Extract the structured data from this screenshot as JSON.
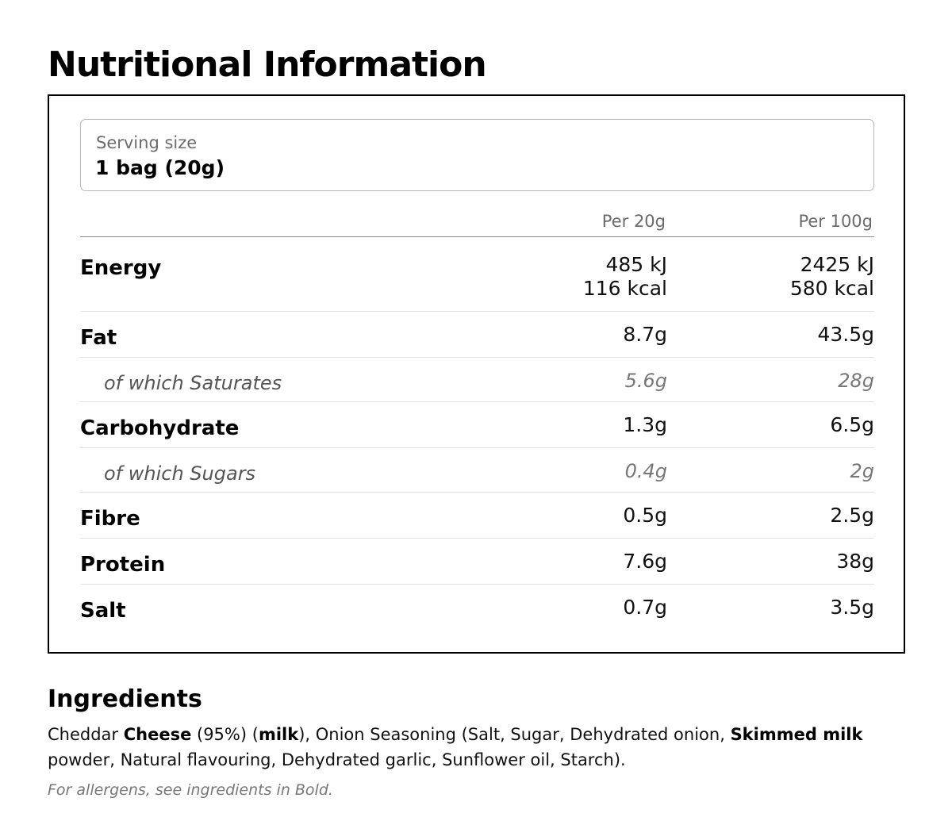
{
  "title": "Nutritional Information",
  "serving": {
    "label": "Serving size",
    "value": "1 bag (20g)"
  },
  "columns": {
    "per_serving": "Per 20g",
    "per_100g": "Per 100g"
  },
  "nutrients": [
    {
      "name": "Energy",
      "sub": false,
      "per_serving": [
        "485 kJ",
        "116 kcal"
      ],
      "per_100g": [
        "2425 kJ",
        "580 kcal"
      ]
    },
    {
      "name": "Fat",
      "sub": false,
      "per_serving": [
        "8.7g"
      ],
      "per_100g": [
        "43.5g"
      ]
    },
    {
      "name": "of which Saturates",
      "sub": true,
      "per_serving": [
        "5.6g"
      ],
      "per_100g": [
        "28g"
      ]
    },
    {
      "name": "Carbohydrate",
      "sub": false,
      "per_serving": [
        "1.3g"
      ],
      "per_100g": [
        "6.5g"
      ]
    },
    {
      "name": "of which Sugars",
      "sub": true,
      "per_serving": [
        "0.4g"
      ],
      "per_100g": [
        "2g"
      ]
    },
    {
      "name": "Fibre",
      "sub": false,
      "per_serving": [
        "0.5g"
      ],
      "per_100g": [
        "2.5g"
      ]
    },
    {
      "name": "Protein",
      "sub": false,
      "per_serving": [
        "7.6g"
      ],
      "per_100g": [
        "38g"
      ]
    },
    {
      "name": "Salt",
      "sub": false,
      "per_serving": [
        "0.7g"
      ],
      "per_100g": [
        "3.5g"
      ]
    }
  ],
  "ingredients": {
    "title": "Ingredients",
    "segments": [
      {
        "text": "Cheddar ",
        "bold": false
      },
      {
        "text": "Cheese",
        "bold": true
      },
      {
        "text": " (95%) (",
        "bold": false
      },
      {
        "text": "milk",
        "bold": true
      },
      {
        "text": "), Onion Seasoning (Salt, Sugar, Dehydrated onion, ",
        "bold": false
      },
      {
        "text": "Skimmed milk",
        "bold": true
      },
      {
        "text": " powder, Natural flavouring, Dehydrated garlic, Sunflower oil, Starch).",
        "bold": false
      }
    ],
    "allergen_note": "For allergens, see ingredients in Bold."
  }
}
